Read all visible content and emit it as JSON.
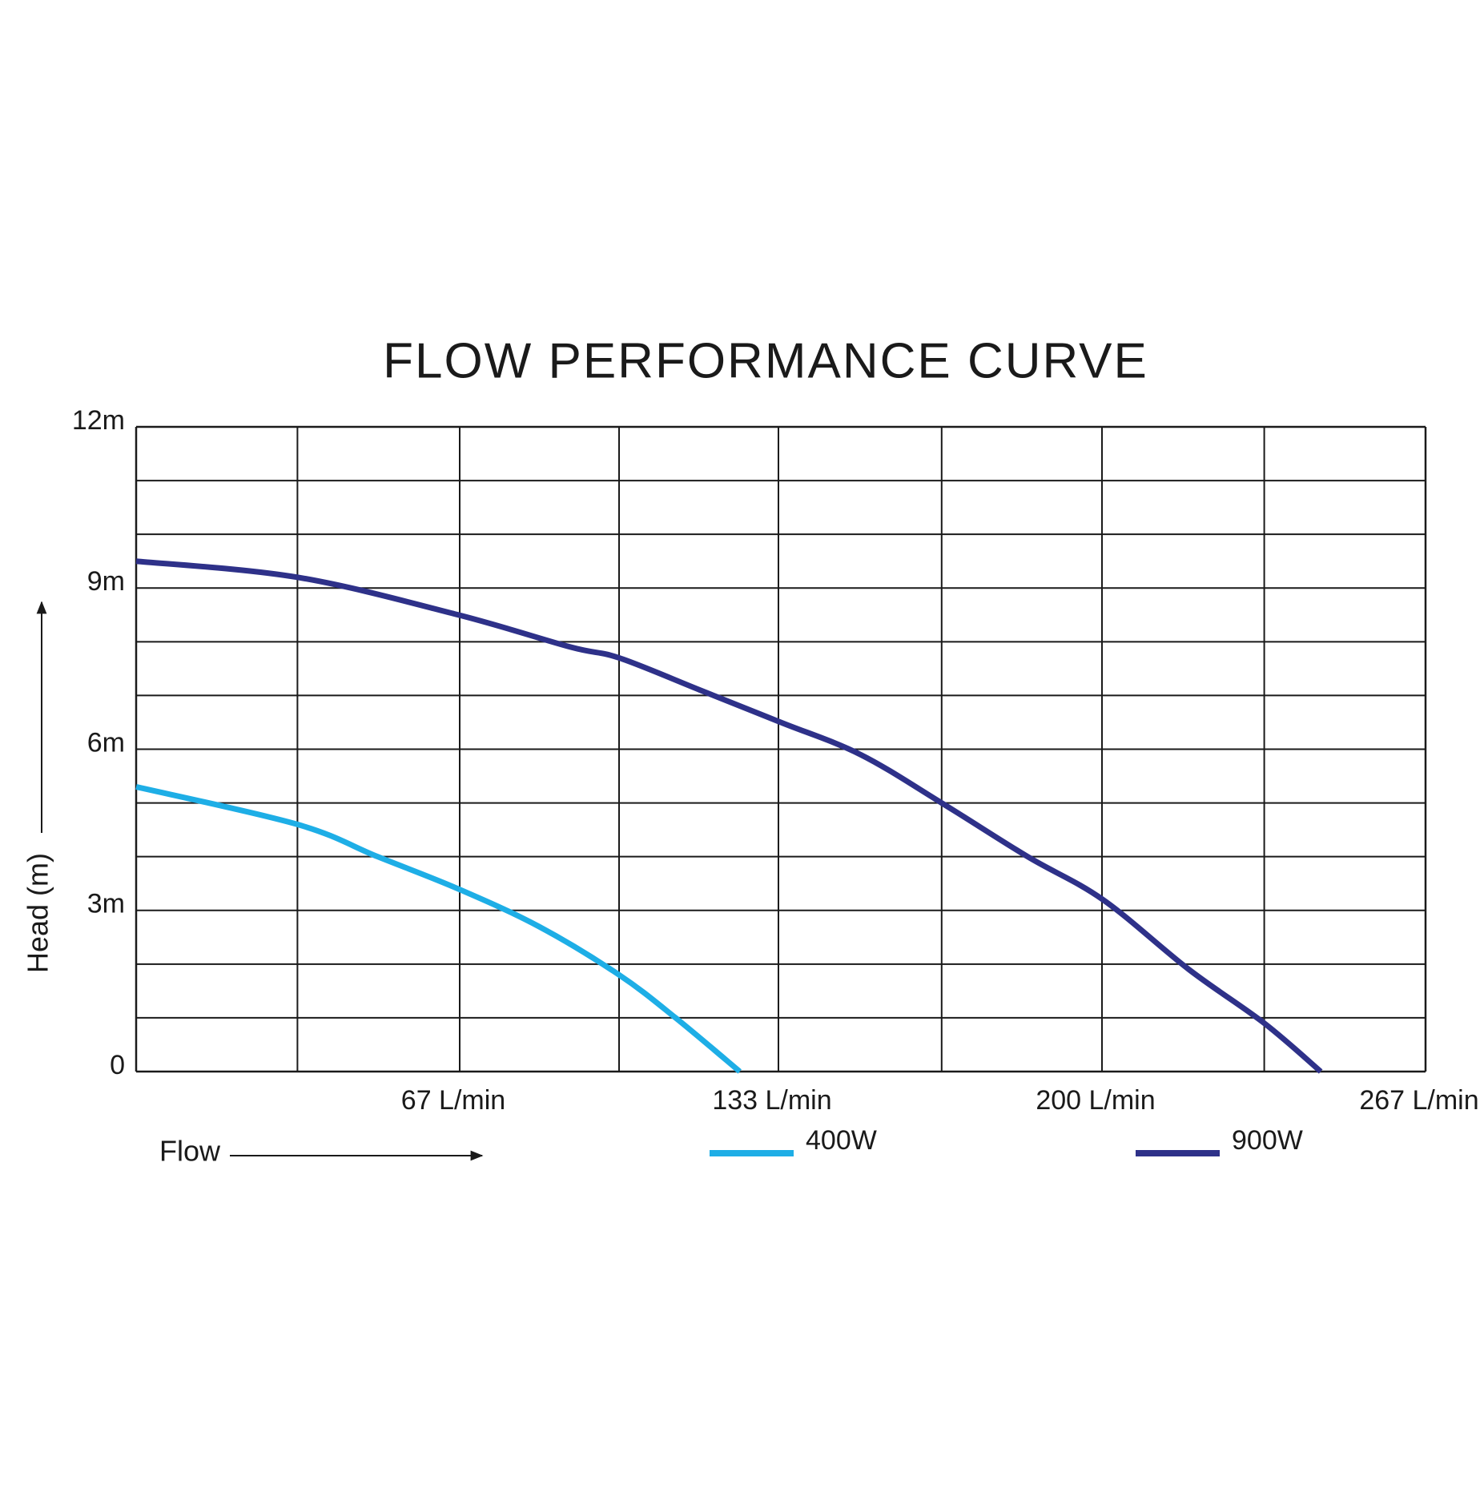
{
  "chart_data": {
    "type": "line",
    "title": "FLOW PERFORMANCE CURVE",
    "x_label": "Flow",
    "y_label": "Head (m)",
    "xlim": [
      0,
      267
    ],
    "ylim": [
      0,
      12
    ],
    "xticks": [
      {
        "value": 67,
        "label": "67 L/min"
      },
      {
        "value": 133,
        "label": "133 L/min"
      },
      {
        "value": 200,
        "label": "200 L/min"
      },
      {
        "value": 267,
        "label": "267 L/min"
      }
    ],
    "xminor": [
      33.4,
      100,
      166.8,
      233.6
    ],
    "yticks": [
      0,
      {
        "value": 3,
        "label": "3m"
      },
      {
        "value": 6,
        "label": "6m"
      },
      {
        "value": 9,
        "label": "9m"
      },
      {
        "value": 12,
        "label": "12m"
      }
    ],
    "yminor": [
      1,
      2,
      4,
      5,
      7,
      8,
      10,
      11
    ],
    "grid": true,
    "series": [
      {
        "name": "400W",
        "color": "#1eaee6",
        "x": [
          0,
          33.4,
          50,
          66.7,
          83.4,
          100,
          111.7,
          125
        ],
        "values": [
          5.3,
          4.6,
          4.0,
          3.4,
          2.7,
          1.8,
          1.0,
          0
        ]
      },
      {
        "name": "900W",
        "color": "#2e3189",
        "x": [
          0,
          33.4,
          66.7,
          90,
          100,
          116.8,
          133.5,
          150,
          166.8,
          184.6,
          200.2,
          218,
          233.6,
          245.3
        ],
        "values": [
          9.5,
          9.2,
          8.5,
          7.9,
          7.7,
          7.1,
          6.5,
          5.9,
          5.0,
          4.0,
          3.2,
          1.9,
          0.9,
          0
        ]
      }
    ]
  }
}
